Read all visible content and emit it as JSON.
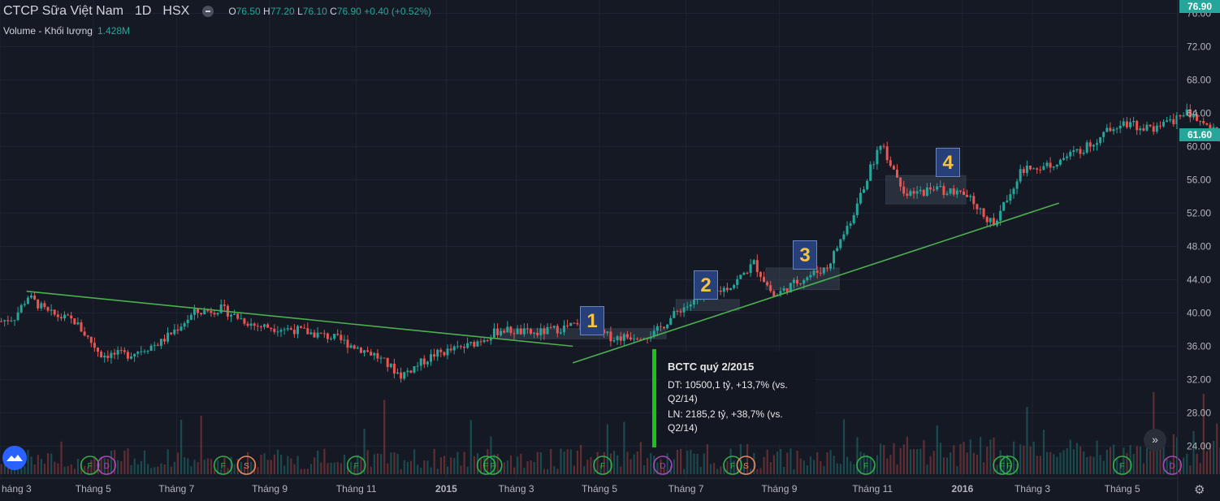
{
  "header": {
    "symbol": "CTCP Sữa Việt Nam",
    "timeframe": "1D",
    "exchange": "HSX",
    "o_label": "O",
    "o": "76.50",
    "h_label": "H",
    "h": "77.20",
    "l_label": "L",
    "l": "76.10",
    "c_label": "C",
    "c": "76.90",
    "change": "+0.40 (+0.52%)",
    "volume_label": "Volume - Khối lượng",
    "volume_value": "1.428M"
  },
  "price_tags": {
    "top": "76.90",
    "current": "61.60"
  },
  "tooltip": {
    "title": "BCTC quý 2/2015",
    "line1": "DT: 10500,1 tỷ, +13,7% (vs. Q2/14)",
    "line2": "LN: 2185,2 tỷ, +38,7% (vs. Q2/14)"
  },
  "badges": [
    "1",
    "2",
    "3",
    "4"
  ],
  "forward_icon": "double-chevron-right-icon",
  "settings_icon": "gear-icon",
  "colors": {
    "up": "#26a69a",
    "down": "#ef5350",
    "trend": "#4caf50",
    "bg": "#151924",
    "accent": "#2962ff"
  },
  "chart_data": {
    "type": "candlestick",
    "y_ticks": [
      "76.00",
      "72.00",
      "68.00",
      "64.00",
      "60.00",
      "56.00",
      "52.00",
      "48.00",
      "44.00",
      "40.00",
      "36.00",
      "32.00",
      "28.00",
      "24.00"
    ],
    "ylim": [
      20.8,
      77.5
    ],
    "x_ticks": [
      "háng 3",
      "Tháng 5",
      "Tháng 7",
      "Tháng 9",
      "Tháng 11",
      "2015",
      "Tháng 3",
      "Tháng 5",
      "Tháng 7",
      "Tháng 9",
      "Tháng 11",
      "2016",
      "Tháng 3",
      "Tháng 5"
    ],
    "grid": true,
    "anchor_series": [
      {
        "t": 0,
        "v": 39
      },
      {
        "t": 4,
        "v": 39.5
      },
      {
        "t": 8,
        "v": 42
      },
      {
        "t": 14,
        "v": 40
      },
      {
        "t": 22,
        "v": 39
      },
      {
        "t": 30,
        "v": 35
      },
      {
        "t": 38,
        "v": 35
      },
      {
        "t": 48,
        "v": 36.5
      },
      {
        "t": 58,
        "v": 40
      },
      {
        "t": 66,
        "v": 40.5
      },
      {
        "t": 76,
        "v": 38.5
      },
      {
        "t": 88,
        "v": 38
      },
      {
        "t": 100,
        "v": 37
      },
      {
        "t": 112,
        "v": 35
      },
      {
        "t": 120,
        "v": 32.5
      },
      {
        "t": 130,
        "v": 35
      },
      {
        "t": 140,
        "v": 36
      },
      {
        "t": 150,
        "v": 38
      },
      {
        "t": 160,
        "v": 37.5
      },
      {
        "t": 172,
        "v": 38.5
      },
      {
        "t": 184,
        "v": 37
      },
      {
        "t": 196,
        "v": 37.5
      },
      {
        "t": 204,
        "v": 40.5
      },
      {
        "t": 212,
        "v": 42
      },
      {
        "t": 220,
        "v": 43.5
      },
      {
        "t": 226,
        "v": 46
      },
      {
        "t": 232,
        "v": 42
      },
      {
        "t": 240,
        "v": 44
      },
      {
        "t": 248,
        "v": 45.5
      },
      {
        "t": 256,
        "v": 52
      },
      {
        "t": 264,
        "v": 60.5
      },
      {
        "t": 272,
        "v": 54
      },
      {
        "t": 280,
        "v": 55
      },
      {
        "t": 290,
        "v": 54
      },
      {
        "t": 298,
        "v": 50.5
      },
      {
        "t": 306,
        "v": 57
      },
      {
        "t": 316,
        "v": 58
      },
      {
        "t": 326,
        "v": 60
      },
      {
        "t": 336,
        "v": 63
      },
      {
        "t": 346,
        "v": 62
      },
      {
        "t": 356,
        "v": 64
      },
      {
        "t": 366,
        "v": 61.6
      }
    ],
    "trendlines": [
      {
        "name": "downtrend",
        "from": {
          "t": 8,
          "v": 42.6
        },
        "to": {
          "t": 172,
          "v": 36.0
        }
      },
      {
        "name": "uptrend",
        "from": {
          "t": 172,
          "v": 34.0
        },
        "to": {
          "t": 318,
          "v": 53.2
        }
      }
    ],
    "zones": [
      {
        "label": "1",
        "t0": 150,
        "t1": 200,
        "v0": 36.9,
        "v1": 38.1
      },
      {
        "label": "2",
        "t0": 203,
        "t1": 222,
        "v0": 40.3,
        "v1": 41.6
      },
      {
        "label": "3",
        "t0": 230,
        "t1": 252,
        "v0": 42.8,
        "v1": 45.4
      },
      {
        "label": "4",
        "t0": 266,
        "t1": 290,
        "v0": 53.1,
        "v1": 56.5
      }
    ],
    "event_markers": [
      "F",
      "D",
      "F",
      "S",
      "F",
      "F",
      "F",
      "F",
      "D",
      "F",
      "S",
      "F",
      "F",
      "F",
      "F",
      "D"
    ]
  }
}
